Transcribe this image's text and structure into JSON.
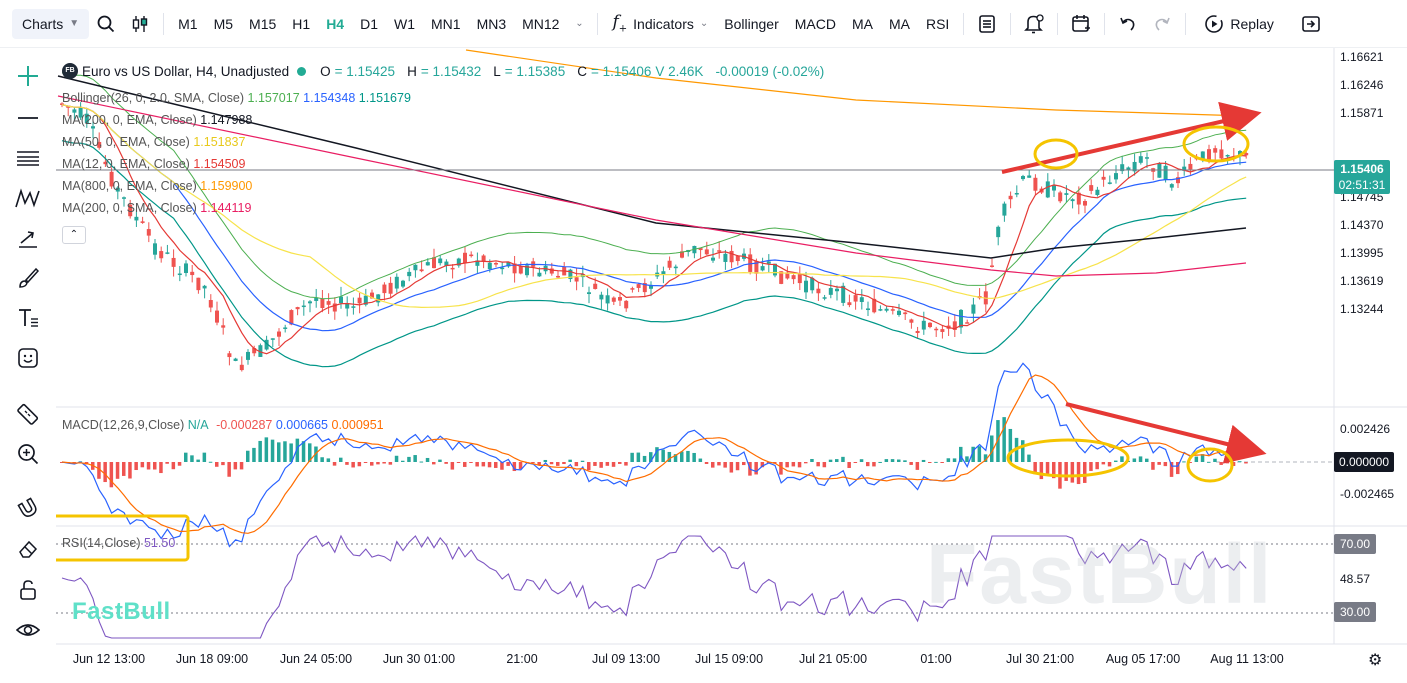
{
  "toolbar": {
    "charts_label": "Charts",
    "timeframes": [
      "M1",
      "M5",
      "M15",
      "H1",
      "H4",
      "D1",
      "W1",
      "MN1",
      "MN3",
      "MN12"
    ],
    "active_timeframe": "H4",
    "indicators_label": "Indicators",
    "indicator_shortcuts": [
      "Bollinger",
      "MACD",
      "MA",
      "MA",
      "RSI"
    ],
    "replay_label": "Replay"
  },
  "legend": {
    "symbol_badge": "FB",
    "symbol_title": "Euro vs US Dollar, H4, Unadjusted",
    "o_label": "O",
    "o_value": "= 1.15425",
    "h_label": "H",
    "h_value": "= 1.15432",
    "l_label": "L",
    "l_value": "= 1.15385",
    "c_label": "C",
    "c_value": "= 1.15406",
    "v_value": "V 2.46K",
    "change": "-0.00019 (-0.02%)",
    "bollinger_name": "Bollinger(26, 0, 2.0, SMA, Close)",
    "bollinger_vals": [
      "1.157017",
      "1.154348",
      "1.151679"
    ],
    "ma1_name": "MA(200, 0, EMA, Close)",
    "ma1_val": "1.147988",
    "ma2_name": "MA(50, 0, EMA, Close)",
    "ma2_val": "1.151837",
    "ma3_name": "MA(12, 0, EMA, Close)",
    "ma3_val": "1.154509",
    "ma4_name": "MA(800, 0, EMA, Close)",
    "ma4_val": "1.159900",
    "ma5_name": "MA(200, 0, SMA, Close)",
    "ma5_val": "1.144119",
    "macd_name": "MACD(12,26,9,Close)",
    "macd_na": "N/A",
    "macd_vals": [
      "-0.000287",
      "0.000665",
      "0.000951"
    ],
    "rsi_name": "RSI(14,Close)",
    "rsi_val": "51.50"
  },
  "price_axis": [
    "1.16621",
    "1.16246",
    "1.15871",
    "1.15496",
    "1.15120",
    "1.14745",
    "1.14370",
    "1.13995",
    "1.13619",
    "1.13244"
  ],
  "current_price": "1.15406",
  "countdown": "02:51:31",
  "macd_axis": [
    "0.002426",
    "0.000000",
    "-0.002465"
  ],
  "macd_tag": "0.000000",
  "rsi_axis": [
    "70.00",
    "48.57",
    "30.00"
  ],
  "time_axis": [
    "Jun 12 13:00",
    "Jun 18 09:00",
    "Jun 24 05:00",
    "Jun 30 01:00",
    "21:00",
    "Jul 09 13:00",
    "Jul 15 09:00",
    "Jul 21 05:00",
    "01:00",
    "Jul 30 21:00",
    "Aug 05 17:00",
    "Aug 11 13:00"
  ],
  "watermark": "FastBull",
  "colors": {
    "up": "#26a69a",
    "down": "#ef5350",
    "bb_mid": "#2962ff",
    "bb_band": "#4caf50",
    "bb_low": "#009688",
    "ma200ema": "#131722",
    "ma50ema": "#f7e34b",
    "ma12ema": "#e53935",
    "ma800ema": "#ff9800",
    "ma200sma": "#e91e63",
    "annot_arrow": "#e53935",
    "annot_circle": "#f5c400",
    "accent": "#22ab94"
  }
}
